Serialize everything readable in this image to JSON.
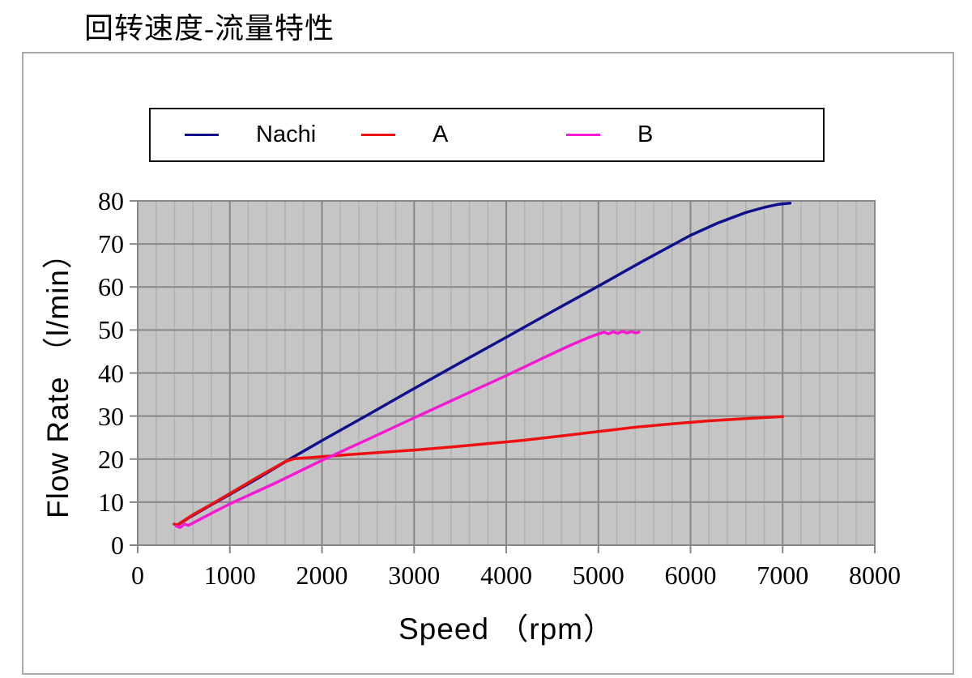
{
  "title": "回转速度-流量特性",
  "legend": {
    "items": [
      {
        "label": "Nachi",
        "color": "#10108c"
      },
      {
        "label": "A",
        "color": "#ee1111"
      },
      {
        "label": "B",
        "color": "#f519d4"
      }
    ]
  },
  "chart_data": {
    "type": "line",
    "title": "回转速度-流量特性",
    "xlabel": "Speed （rpm）",
    "ylabel": "Flow Rate （l/min）",
    "xlim": [
      0,
      8000
    ],
    "ylim": [
      0,
      80
    ],
    "x_major_ticks": [
      0,
      1000,
      2000,
      3000,
      4000,
      5000,
      6000,
      7000,
      8000
    ],
    "y_major_ticks": [
      0,
      10,
      20,
      30,
      40,
      50,
      60,
      70,
      80
    ],
    "x_minor_step": 200,
    "grid": true,
    "legend_position": "top",
    "plot_bg": "#c5c5c5",
    "grid_major_color": "#878787",
    "grid_minor_color": "#b0b0b0",
    "frame_color": "#a9a9a9",
    "series": [
      {
        "name": "Nachi",
        "color": "#10108c",
        "points": [
          [
            420,
            4.5
          ],
          [
            550,
            6.3
          ],
          [
            800,
            9.4
          ],
          [
            1000,
            11.8
          ],
          [
            1300,
            15.5
          ],
          [
            1650,
            20.0
          ],
          [
            2000,
            24.3
          ],
          [
            2500,
            30.3
          ],
          [
            3000,
            36.4
          ],
          [
            3500,
            42.4
          ],
          [
            4000,
            48.3
          ],
          [
            4500,
            54.3
          ],
          [
            5000,
            60.2
          ],
          [
            5500,
            66.2
          ],
          [
            6000,
            72.0
          ],
          [
            6300,
            74.9
          ],
          [
            6600,
            77.3
          ],
          [
            6800,
            78.5
          ],
          [
            6950,
            79.2
          ],
          [
            7080,
            79.5
          ]
        ]
      },
      {
        "name": "A",
        "color": "#ee1111",
        "points": [
          [
            395,
            4.9
          ],
          [
            430,
            4.7
          ],
          [
            600,
            7.1
          ],
          [
            800,
            9.5
          ],
          [
            1000,
            12.0
          ],
          [
            1300,
            15.8
          ],
          [
            1600,
            19.4
          ],
          [
            1700,
            20.1
          ],
          [
            1900,
            20.4
          ],
          [
            2200,
            20.9
          ],
          [
            2600,
            21.5
          ],
          [
            3000,
            22.1
          ],
          [
            3400,
            22.8
          ],
          [
            3800,
            23.6
          ],
          [
            4200,
            24.4
          ],
          [
            4600,
            25.4
          ],
          [
            5000,
            26.4
          ],
          [
            5400,
            27.4
          ],
          [
            5800,
            28.2
          ],
          [
            6200,
            28.9
          ],
          [
            6600,
            29.4
          ],
          [
            7000,
            29.9
          ]
        ]
      },
      {
        "name": "B",
        "color": "#f519d4",
        "points": [
          [
            420,
            4.4
          ],
          [
            460,
            4.1
          ],
          [
            510,
            4.9
          ],
          [
            550,
            4.6
          ],
          [
            800,
            7.4
          ],
          [
            1000,
            9.6
          ],
          [
            1500,
            14.5
          ],
          [
            2000,
            19.7
          ],
          [
            2500,
            24.6
          ],
          [
            3000,
            29.6
          ],
          [
            3500,
            34.5
          ],
          [
            4000,
            39.4
          ],
          [
            4400,
            43.5
          ],
          [
            4700,
            46.5
          ],
          [
            4900,
            48.3
          ],
          [
            5000,
            49.1
          ],
          [
            5060,
            49.5
          ],
          [
            5110,
            49.1
          ],
          [
            5160,
            49.6
          ],
          [
            5210,
            49.2
          ],
          [
            5260,
            49.7
          ],
          [
            5310,
            49.3
          ],
          [
            5360,
            49.6
          ],
          [
            5410,
            49.3
          ],
          [
            5440,
            49.5
          ]
        ]
      }
    ]
  }
}
